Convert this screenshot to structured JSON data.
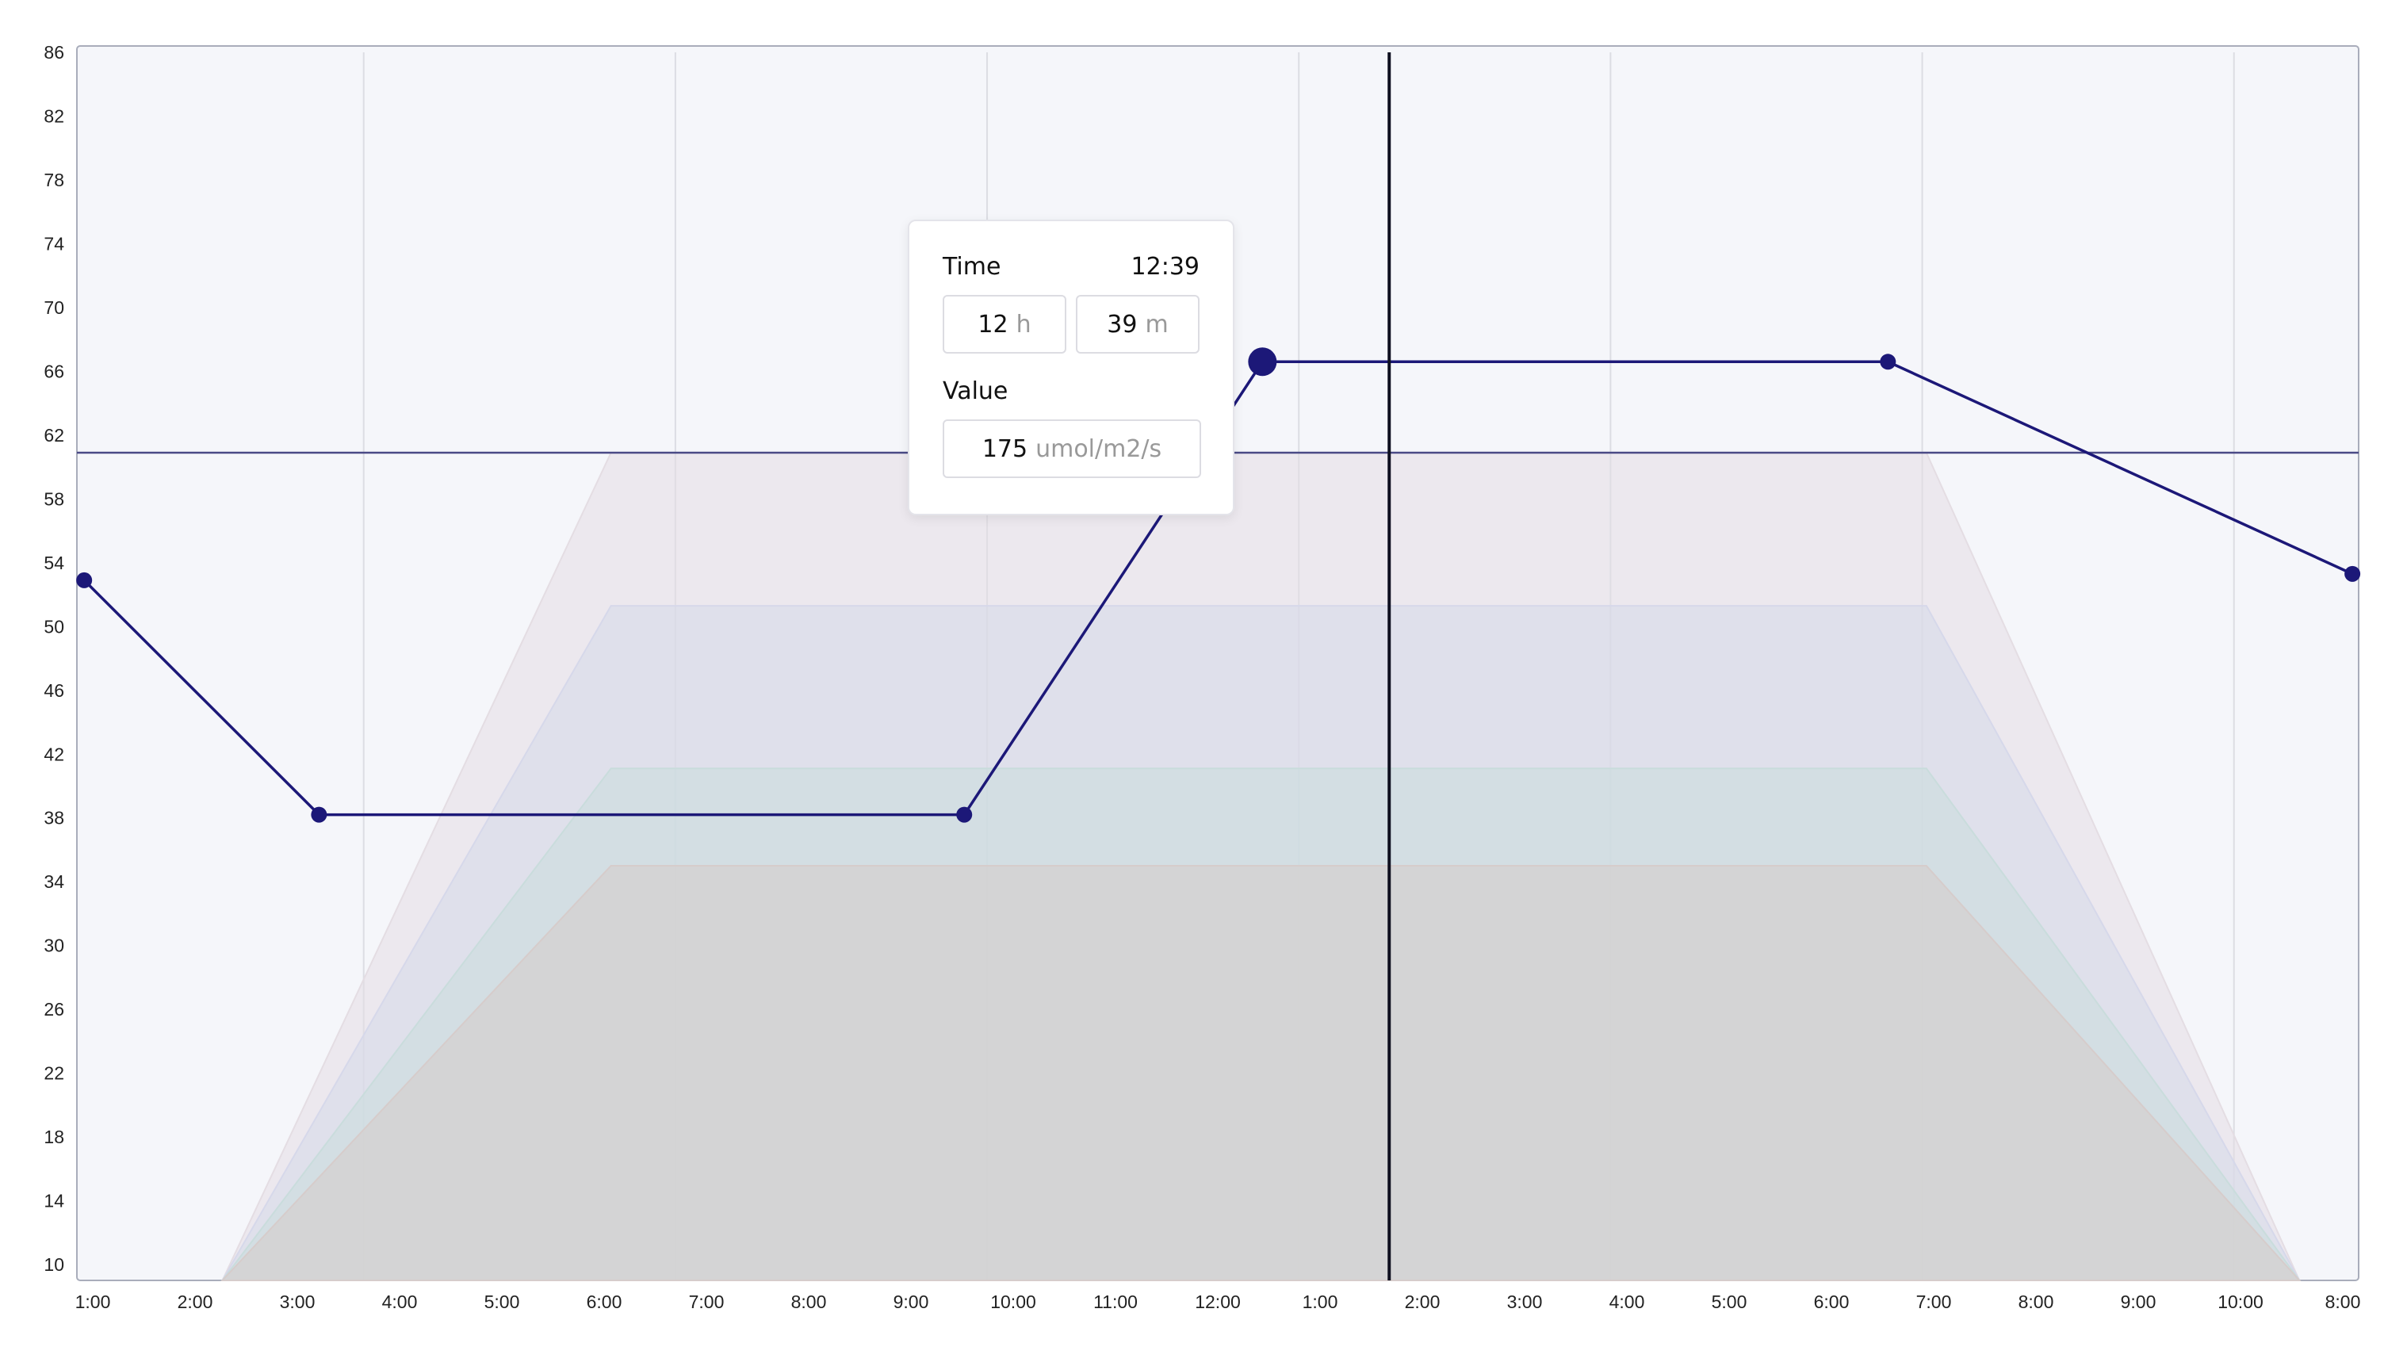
{
  "chart_data": {
    "type": "line",
    "xlim": [
      1.24,
      23.2
    ],
    "ylim": [
      9.1,
      86.5
    ],
    "yticks": [
      10,
      14,
      18,
      22,
      26,
      30,
      34,
      38,
      42,
      46,
      50,
      54,
      58,
      62,
      66,
      70,
      74,
      78,
      82,
      86
    ],
    "x_labels": [
      "1:00",
      "2:00",
      "3:00",
      "4:00",
      "5:00",
      "6:00",
      "7:00",
      "8:00",
      "9:00",
      "10:00",
      "11:00",
      "12:00",
      "1:00",
      "2:00",
      "3:00",
      "4:00",
      "5:00",
      "6:00",
      "7:00",
      "8:00",
      "9:00",
      "10:00",
      "8:00"
    ],
    "grid_x": [
      4,
      7,
      10,
      13,
      16,
      19,
      22
    ],
    "grid": true,
    "areas": [
      {
        "color": "#e4dde3",
        "x": [
          2.64,
          6.38,
          19.04,
          22.63
        ],
        "values": [
          9.1,
          61.0,
          61.0,
          9.1
        ]
      },
      {
        "color": "#d6d8ea",
        "x": [
          2.64,
          6.38,
          19.04,
          22.63
        ],
        "values": [
          9.1,
          51.4,
          51.4,
          9.1
        ]
      },
      {
        "color": "#c9dcdc",
        "x": [
          2.64,
          6.38,
          19.04,
          22.63
        ],
        "values": [
          9.1,
          41.2,
          41.2,
          9.1
        ]
      },
      {
        "color": "#d6cccb",
        "x": [
          2.64,
          6.38,
          19.04,
          22.63
        ],
        "values": [
          9.1,
          35.1,
          35.1,
          9.1
        ]
      }
    ],
    "series": [
      {
        "color": "#1c1878",
        "x": [
          1.31,
          3.57,
          9.78,
          12.65,
          18.67,
          23.14
        ],
        "values": [
          53.0,
          38.3,
          38.3,
          66.7,
          66.7,
          53.4
        ]
      }
    ],
    "selected_index": 3,
    "threshold": 61.0,
    "cursor_x": 13.87
  },
  "tooltip": {
    "time_label": "Time",
    "time": "12:39",
    "hours": "12",
    "hours_unit": "h",
    "minutes": "39",
    "minutes_unit": "m",
    "value_label": "Value",
    "value": "175",
    "value_unit": "umol/m2/s"
  }
}
